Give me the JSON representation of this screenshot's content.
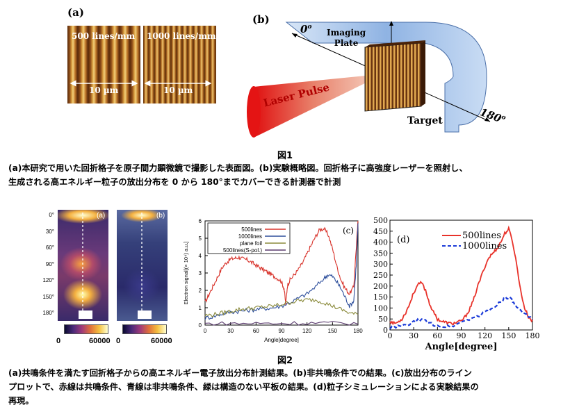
{
  "fig1": {
    "panel_a": {
      "label": "(a)",
      "left_title": "500 lines/mm",
      "right_title": "1000 lines/mm",
      "left_scale": "10 µm",
      "right_scale": "10 µm"
    },
    "panel_b": {
      "label": "(b)",
      "angle_start": "0",
      "angle_end": "180",
      "deg_mark": "o",
      "imaging_plate_line1": "Imaging",
      "imaging_plate_line2": "Plate",
      "laser": "Laser Pulse",
      "target": "Target"
    },
    "title": "図1",
    "caption_line1": "(a)本研究で用いた回折格子を原子間力顕微鏡で撮影した表面図。(b)実験概略図。回折格子に高強度レーザーを照射し、",
    "caption_line2": "生成される高エネルギー粒子の放出分布を 0 から 180°までカバーできる計測器で計測"
  },
  "fig2": {
    "images": {
      "left_label": "(a)",
      "right_label": "(b)",
      "angle_ticks": [
        "0°",
        "30°",
        "60°",
        "90°",
        "120°",
        "150°",
        "180°"
      ],
      "colorbar_ticks": [
        "0",
        "60000"
      ]
    },
    "chart_c": {
      "label": "(c)",
      "ylabel": "Electron signal[(× 10⁴) a.u.]",
      "xlabel": "Angle[degree]",
      "legend": [
        "500lines",
        "1000lines",
        "plane foil",
        "500lines(S-pol.)"
      ]
    },
    "chart_d": {
      "label": "(d)",
      "xlabel": "Angle[degree]",
      "legend": [
        "500lines",
        "1000lines"
      ]
    },
    "title": "図2",
    "caption_line1": "(a)共鳴条件を満たす回折格子からの高エネルギー電子放出分布計測結果。(b)非共鳴条件での結果。(c)放出分布のライン",
    "caption_line2": "プロットで、赤線は共鳴条件、青線は非共鳴条件、緑は構造のない平板の結果。(d)粒子シミュレーションによる実験結果の",
    "caption_line3": "再現。"
  },
  "colors": {
    "red": "#d8322a",
    "blue": "#2e4f9c",
    "green": "#8a8a3a",
    "purple": "#5a3a6e",
    "d_red": "#e8322a",
    "d_blue": "#1a3ad8"
  },
  "chart_data": [
    {
      "type": "line",
      "panel": "(c)",
      "xlabel": "Angle[degree]",
      "ylabel": "Electron signal[(× 10⁴) a.u.]",
      "xlim": [
        0,
        180
      ],
      "ylim": [
        0,
        6
      ],
      "xticks": [
        0,
        30,
        60,
        90,
        120,
        150,
        180
      ],
      "yticks": [
        0,
        1,
        2,
        3,
        4,
        5,
        6
      ],
      "legend_position": "top-left",
      "series": [
        {
          "name": "500lines",
          "color": "#d8322a",
          "x": [
            0,
            5,
            10,
            15,
            20,
            25,
            30,
            35,
            40,
            45,
            50,
            55,
            60,
            65,
            70,
            75,
            80,
            85,
            90,
            93,
            95,
            97,
            100,
            105,
            110,
            115,
            120,
            125,
            130,
            135,
            140,
            145,
            150,
            155,
            160,
            165,
            170,
            175,
            178,
            180
          ],
          "y": [
            1.3,
            1.8,
            2.3,
            2.8,
            3.3,
            3.6,
            3.8,
            3.85,
            3.9,
            3.8,
            3.75,
            3.6,
            3.45,
            3.3,
            3.15,
            3.0,
            2.85,
            2.7,
            2.5,
            2.1,
            1.2,
            2.3,
            2.6,
            2.9,
            3.2,
            3.6,
            4.1,
            4.6,
            5.1,
            5.5,
            5.55,
            5.2,
            4.4,
            3.4,
            2.6,
            2.1,
            1.8,
            2.2,
            4.5,
            6.0
          ]
        },
        {
          "name": "1000lines",
          "color": "#2e4f9c",
          "x": [
            0,
            10,
            20,
            30,
            40,
            50,
            60,
            70,
            80,
            90,
            100,
            110,
            120,
            130,
            140,
            145,
            150,
            155,
            160,
            165,
            170,
            175,
            178,
            180
          ],
          "y": [
            0.4,
            0.5,
            0.65,
            0.75,
            0.8,
            0.85,
            0.9,
            0.95,
            1.0,
            1.1,
            1.3,
            1.55,
            1.8,
            2.2,
            2.7,
            2.9,
            2.8,
            2.5,
            2.1,
            1.6,
            1.1,
            1.4,
            3.5,
            5.8
          ]
        },
        {
          "name": "plane foil",
          "color": "#8a8a3a",
          "x": [
            0,
            10,
            20,
            30,
            40,
            50,
            60,
            70,
            80,
            90,
            100,
            110,
            120,
            130,
            140,
            150,
            160,
            170,
            180
          ],
          "y": [
            0.55,
            0.6,
            0.7,
            0.8,
            0.9,
            0.95,
            1.0,
            1.05,
            1.1,
            1.2,
            1.3,
            1.4,
            1.45,
            1.45,
            1.3,
            1.1,
            0.9,
            0.7,
            0.6
          ]
        },
        {
          "name": "500lines(S-pol.)",
          "color": "#5a3a6e",
          "x": [
            0,
            30,
            60,
            90,
            120,
            150,
            180
          ],
          "y": [
            0.08,
            0.09,
            0.1,
            0.1,
            0.12,
            0.11,
            0.1
          ]
        }
      ]
    },
    {
      "type": "line",
      "panel": "(d)",
      "xlabel": "Angle[degree]",
      "xlim": [
        0,
        180
      ],
      "ylim": [
        0,
        500
      ],
      "xticks": [
        0,
        30,
        60,
        90,
        120,
        150,
        180
      ],
      "yticks": [
        0,
        50,
        100,
        150,
        200,
        250,
        300,
        350,
        400,
        450,
        500
      ],
      "legend_position": "top-right",
      "series": [
        {
          "name": "500lines",
          "color": "#e8322a",
          "x": [
            0,
            5,
            10,
            15,
            20,
            25,
            30,
            35,
            40,
            45,
            50,
            55,
            60,
            65,
            70,
            75,
            80,
            85,
            90,
            95,
            100,
            105,
            110,
            115,
            120,
            125,
            130,
            135,
            140,
            145,
            150,
            155,
            160,
            165,
            170,
            175,
            180
          ],
          "y": [
            40,
            30,
            35,
            50,
            80,
            120,
            170,
            205,
            215,
            180,
            120,
            80,
            50,
            40,
            35,
            30,
            30,
            35,
            40,
            60,
            90,
            130,
            190,
            240,
            290,
            330,
            350,
            370,
            400,
            440,
            460,
            400,
            300,
            180,
            100,
            60,
            40
          ]
        },
        {
          "name": "1000lines",
          "color": "#1a3ad8",
          "x": [
            0,
            10,
            20,
            30,
            40,
            50,
            60,
            70,
            80,
            90,
            100,
            110,
            120,
            130,
            140,
            145,
            150,
            155,
            160,
            170,
            180
          ],
          "y": [
            10,
            15,
            20,
            35,
            50,
            30,
            20,
            15,
            20,
            35,
            50,
            60,
            80,
            100,
            130,
            145,
            150,
            130,
            100,
            70,
            50
          ]
        }
      ]
    }
  ]
}
